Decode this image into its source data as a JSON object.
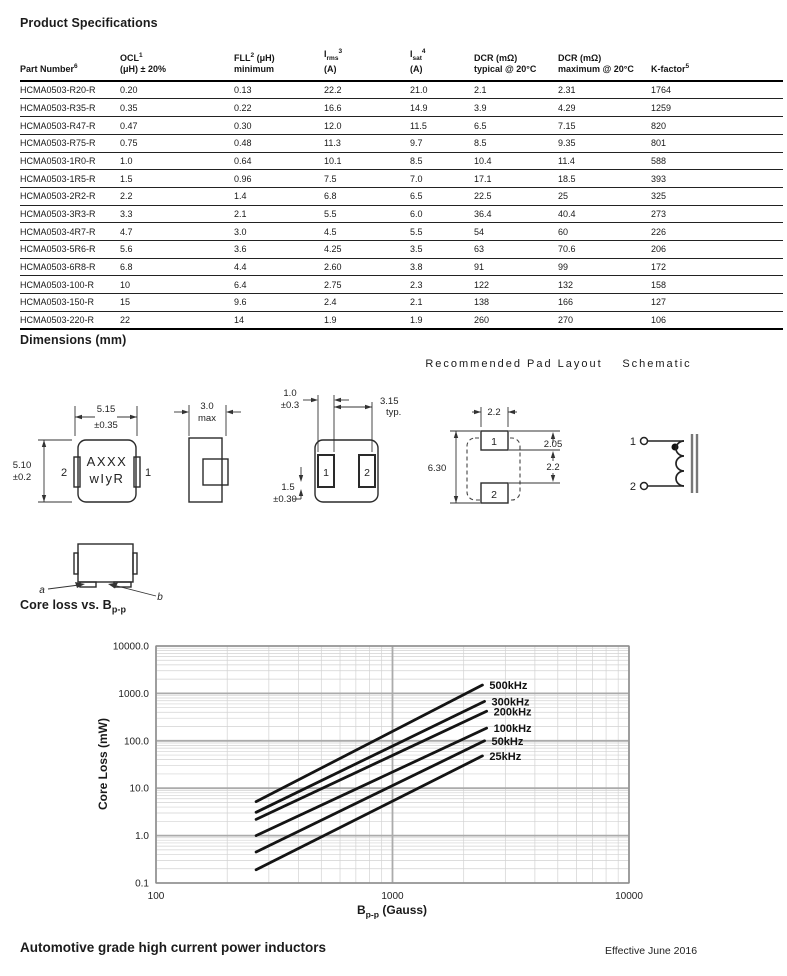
{
  "page": {
    "title": "Product Specifications",
    "dimensions_heading": "Dimensions (mm)",
    "coreloss_heading_segs": [
      {
        "t": "Core loss vs. B"
      },
      {
        "t": "p-p",
        "sub": true
      }
    ],
    "footer_left": "Automotive grade high current power inductors",
    "footer_right": "Effective June 2016"
  },
  "table": {
    "columns": [
      {
        "w": 98,
        "line1": [
          {
            "t": "Part Number"
          },
          {
            "t": "6",
            "sup": true
          }
        ],
        "line2": []
      },
      {
        "w": 112,
        "line1": [
          {
            "t": "OCL"
          },
          {
            "t": "1",
            "sup": true
          }
        ],
        "line2": [
          {
            "t": "(μH) ± 20%"
          }
        ]
      },
      {
        "w": 88,
        "line1": [
          {
            "t": "FLL"
          },
          {
            "t": "2",
            "sup": true
          },
          {
            "t": " (μH)"
          }
        ],
        "line2": [
          {
            "t": "minimum"
          }
        ]
      },
      {
        "w": 84,
        "line1": [
          {
            "t": "I"
          },
          {
            "t": "rms",
            "sub": true
          },
          {
            "t": "3",
            "sup": true
          }
        ],
        "line2": [
          {
            "t": "(A)"
          }
        ]
      },
      {
        "w": 62,
        "line1": [
          {
            "t": "I"
          },
          {
            "t": "sat",
            "sub": true
          },
          {
            "t": "4",
            "sup": true
          }
        ],
        "line2": [
          {
            "t": "(A)"
          }
        ]
      },
      {
        "w": 82,
        "line1": [
          {
            "t": "DCR (mΩ)"
          }
        ],
        "line2": [
          {
            "t": "typical @ 20°C"
          }
        ]
      },
      {
        "w": 91,
        "line1": [
          {
            "t": "DCR (mΩ)"
          }
        ],
        "line2": [
          {
            "t": "maximum @ 20°C"
          }
        ]
      },
      {
        "w": 130,
        "line1": [
          {
            "t": "K-factor"
          },
          {
            "t": "5",
            "sup": true
          }
        ],
        "line2": []
      }
    ],
    "rows": [
      [
        "HCMA0503-R20-R",
        "0.20",
        "0.13",
        "22.2",
        "21.0",
        "2.1",
        "2.31",
        "1764"
      ],
      [
        "HCMA0503-R35-R",
        "0.35",
        "0.22",
        "16.6",
        "14.9",
        "3.9",
        "4.29",
        "1259"
      ],
      [
        "HCMA0503-R47-R",
        "0.47",
        "0.30",
        "12.0",
        "11.5",
        "6.5",
        "7.15",
        "820"
      ],
      [
        "HCMA0503-R75-R",
        "0.75",
        "0.48",
        "11.3",
        "9.7",
        "8.5",
        "9.35",
        "801"
      ],
      [
        "HCMA0503-1R0-R",
        "1.0",
        "0.64",
        "10.1",
        "8.5",
        "10.4",
        "11.4",
        "588"
      ],
      [
        "HCMA0503-1R5-R",
        "1.5",
        "0.96",
        "7.5",
        "7.0",
        "17.1",
        "18.5",
        "393"
      ],
      [
        "HCMA0503-2R2-R",
        "2.2",
        "1.4",
        "6.8",
        "6.5",
        "22.5",
        "25",
        "325"
      ],
      [
        "HCMA0503-3R3-R",
        "3.3",
        "2.1",
        "5.5",
        "6.0",
        "36.4",
        "40.4",
        "273"
      ],
      [
        "HCMA0503-4R7-R",
        "4.7",
        "3.0",
        "4.5",
        "5.5",
        "54",
        "60",
        "226"
      ],
      [
        "HCMA0503-5R6-R",
        "5.6",
        "3.6",
        "4.25",
        "3.5",
        "63",
        "70.6",
        "206"
      ],
      [
        "HCMA0503-6R8-R",
        "6.8",
        "4.4",
        "2.60",
        "3.8",
        "91",
        "99",
        "172"
      ],
      [
        "HCMA0503-100-R",
        "10",
        "6.4",
        "2.75",
        "2.3",
        "122",
        "132",
        "158"
      ],
      [
        "HCMA0503-150-R",
        "15",
        "9.6",
        "2.4",
        "2.1",
        "138",
        "166",
        "127"
      ],
      [
        "HCMA0503-220-R",
        "22",
        "14",
        "1.9",
        "1.9",
        "260",
        "270",
        "106"
      ]
    ]
  },
  "drawings": {
    "front_view": {
      "dim_width": "5.15",
      "dim_width_tol": "±0.35",
      "dim_height": "5.10",
      "dim_height_tol": "±0.2",
      "marking_line1": "AXXX",
      "marking_line2": "wIyR",
      "pin_left": "2",
      "pin_right": "1"
    },
    "side_view": {
      "dim": "3.0",
      "dim_qual": "max"
    },
    "bottom_view": {
      "dim_pad_w": "1.0",
      "dim_pad_w_tol": "±0.3",
      "dim_pitch": "3.15",
      "dim_pitch_qual": "typ.",
      "dim_pad_h": "1.5",
      "dim_pad_h_tol": "±0.30",
      "pad_left": "1",
      "pad_right": "2"
    },
    "pad_layout": {
      "title": "Recommended Pad Layout",
      "dim_pad_w": "2.2",
      "dim_total_h": "6.30",
      "dim_top": "2.05",
      "dim_gap": "2.2",
      "pad_top": "1",
      "pad_bottom": "2"
    },
    "schematic": {
      "title": "Schematic",
      "pin1": "1",
      "pin2": "2"
    },
    "mount_view": {
      "label_a": "a",
      "label_b": "b"
    }
  },
  "chart_data": {
    "type": "line",
    "title": "Core loss vs. Bp-p",
    "xlabel": "Bp-p (Gauss)",
    "xlabel_segs": [
      {
        "t": "B"
      },
      {
        "t": "p-p",
        "sub": true
      },
      {
        "t": " (Gauss)"
      }
    ],
    "ylabel": "Core Loss (mW)",
    "xscale": "log",
    "yscale": "log",
    "xlim": [
      100,
      10000
    ],
    "ylim": [
      0.1,
      10000
    ],
    "grid": "log major+minor, gray",
    "legend_position": "labels at right end of each line",
    "xticks": [
      {
        "v": 100,
        "label": "100"
      },
      {
        "v": 1000,
        "label": "1000"
      },
      {
        "v": 10000,
        "label": "10000"
      }
    ],
    "yticks": [
      {
        "v": 0.1,
        "label": "0.1"
      },
      {
        "v": 1,
        "label": "1.0"
      },
      {
        "v": 10,
        "label": "10.0"
      },
      {
        "v": 100,
        "label": "100.0"
      },
      {
        "v": 1000,
        "label": "1000.0"
      },
      {
        "v": 10000,
        "label": "10000.0"
      }
    ],
    "series": [
      {
        "name": "500kHz",
        "points": [
          [
            265,
            5.2
          ],
          [
            2400,
            1500
          ]
        ]
      },
      {
        "name": "300kHz",
        "points": [
          [
            265,
            3.1
          ],
          [
            2450,
            680
          ]
        ]
      },
      {
        "name": "200kHz",
        "points": [
          [
            265,
            2.2
          ],
          [
            2500,
            420
          ]
        ]
      },
      {
        "name": "100kHz",
        "points": [
          [
            265,
            1.0
          ],
          [
            2500,
            185
          ]
        ]
      },
      {
        "name": "50kHz",
        "points": [
          [
            265,
            0.45
          ],
          [
            2450,
            100
          ]
        ]
      },
      {
        "name": "25kHz",
        "points": [
          [
            265,
            0.19
          ],
          [
            2400,
            48
          ]
        ]
      }
    ]
  }
}
